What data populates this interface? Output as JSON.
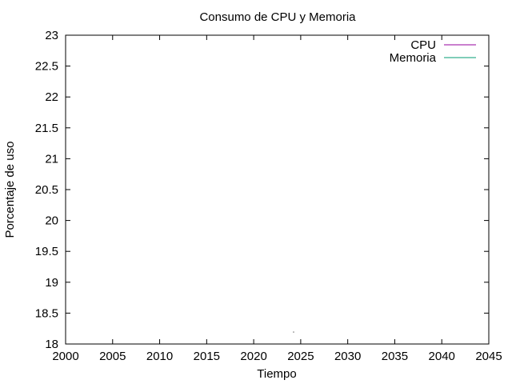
{
  "chart_data": {
    "type": "line",
    "title": "Consumo de CPU y Memoria",
    "xlabel": "Tiempo",
    "ylabel": "Porcentaje de uso",
    "xlim": [
      2000,
      2045
    ],
    "ylim": [
      18,
      23
    ],
    "xticks": [
      "2000",
      "2005",
      "2010",
      "2015",
      "2020",
      "2025",
      "2030",
      "2035",
      "2040",
      "2045"
    ],
    "yticks": [
      "18",
      "18.5",
      "19",
      "19.5",
      "20",
      "20.5",
      "21",
      "21.5",
      "22",
      "22.5",
      "23"
    ],
    "grid": false,
    "legend_position": "top-right",
    "series": [
      {
        "name": "CPU",
        "color": "#94009c",
        "x": [],
        "y": []
      },
      {
        "name": "Memoria",
        "color": "#009e73",
        "x": [],
        "y": []
      }
    ],
    "stray_point": {
      "x": 2024.2,
      "y": 18.2
    }
  }
}
